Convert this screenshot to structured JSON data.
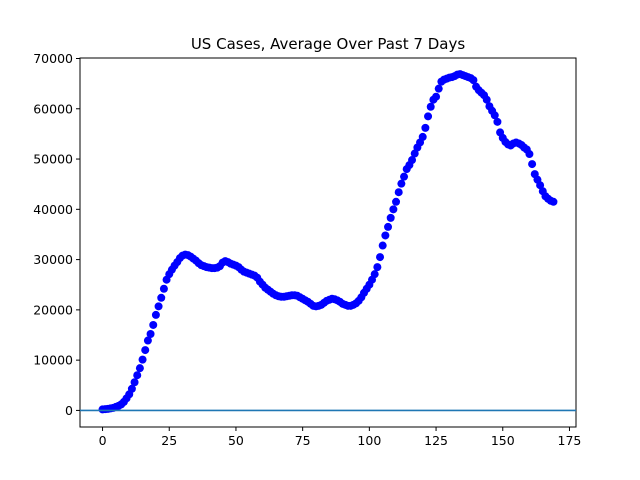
{
  "chart_data": {
    "type": "scatter",
    "title": "US Cases, Average Over Past 7 Days",
    "xlabel": "",
    "ylabel": "",
    "xlim": [
      -8.45,
      177.45
    ],
    "ylim": [
      -3300,
      70100
    ],
    "x_ticks": [
      0,
      25,
      50,
      75,
      100,
      125,
      150,
      175
    ],
    "y_ticks": [
      0,
      10000,
      20000,
      30000,
      40000,
      50000,
      60000,
      70000
    ],
    "grid": false,
    "legend": "none",
    "marker_color": "#0000ff",
    "hline": {
      "y": 0,
      "color": "#1f77b4"
    },
    "series": [
      {
        "x": [
          0,
          1,
          2,
          3,
          4,
          5,
          6,
          7,
          8,
          9,
          10,
          11,
          12,
          13,
          14,
          15,
          16,
          17,
          18,
          19,
          20,
          21,
          22,
          23,
          24,
          25,
          26,
          27,
          28,
          29,
          30,
          31,
          32,
          33,
          34,
          35,
          36,
          37,
          38,
          39,
          40,
          41,
          42,
          43,
          44,
          45,
          46,
          47,
          48,
          49,
          50,
          51,
          52,
          53,
          54,
          55,
          56,
          57,
          58,
          59,
          60,
          61,
          62,
          63,
          64,
          65,
          66,
          67,
          68,
          69,
          70,
          71,
          72,
          73,
          74,
          75,
          76,
          77,
          78,
          79,
          80,
          81,
          82,
          83,
          84,
          85,
          86,
          87,
          88,
          89,
          90,
          91,
          92,
          93,
          94,
          95,
          96,
          97,
          98,
          99,
          100,
          101,
          102,
          103,
          104,
          105,
          106,
          107,
          108,
          109,
          110,
          111,
          112,
          113,
          114,
          115,
          116,
          117,
          118,
          119,
          120,
          121,
          122,
          123,
          124,
          125,
          126,
          127,
          128,
          129,
          130,
          131,
          132,
          133,
          134,
          135,
          136,
          137,
          138,
          139,
          140,
          141,
          142,
          143,
          144,
          145,
          146,
          147,
          148,
          149,
          150,
          151,
          152,
          153,
          154,
          155,
          156,
          157,
          158,
          159,
          160,
          161,
          162,
          163,
          164,
          165,
          166,
          167,
          168,
          169
        ],
        "y": [
          200,
          250,
          300,
          400,
          500,
          700,
          900,
          1200,
          1700,
          2400,
          3200,
          4300,
          5600,
          7000,
          8400,
          10100,
          12000,
          13900,
          15200,
          17000,
          19000,
          20700,
          22400,
          24200,
          26000,
          27100,
          28000,
          28800,
          29500,
          30300,
          30800,
          31000,
          30900,
          30600,
          30200,
          29800,
          29300,
          28900,
          28700,
          28500,
          28400,
          28300,
          28300,
          28400,
          28700,
          29400,
          29700,
          29500,
          29200,
          29000,
          28800,
          28500,
          28000,
          27600,
          27400,
          27200,
          27000,
          26800,
          26400,
          25600,
          25000,
          24400,
          24000,
          23600,
          23200,
          22900,
          22700,
          22600,
          22600,
          22700,
          22800,
          22900,
          22900,
          22800,
          22500,
          22200,
          21900,
          21600,
          21200,
          20800,
          20700,
          20800,
          21000,
          21400,
          21800,
          22000,
          22200,
          22100,
          21900,
          21600,
          21200,
          21000,
          20800,
          20800,
          21000,
          21300,
          21800,
          22500,
          23400,
          24200,
          25000,
          26000,
          27100,
          28500,
          30500,
          32800,
          34800,
          36500,
          38300,
          40000,
          41500,
          43400,
          45100,
          46500,
          48000,
          48800,
          49800,
          51100,
          52300,
          53300,
          54400,
          56200,
          58500,
          60400,
          61800,
          62400,
          64000,
          65400,
          65800,
          66000,
          66200,
          66300,
          66500,
          66800,
          66900,
          66700,
          66500,
          66300,
          66100,
          65700,
          64400,
          63700,
          63200,
          62700,
          61800,
          60500,
          59600,
          58700,
          57400,
          55300,
          54200,
          53400,
          52900,
          52700,
          53100,
          53300,
          53100,
          52800,
          52300,
          51900,
          51000,
          49000,
          47000,
          45900,
          44800,
          43600,
          42600,
          42100,
          41700,
          41500
        ]
      }
    ]
  }
}
